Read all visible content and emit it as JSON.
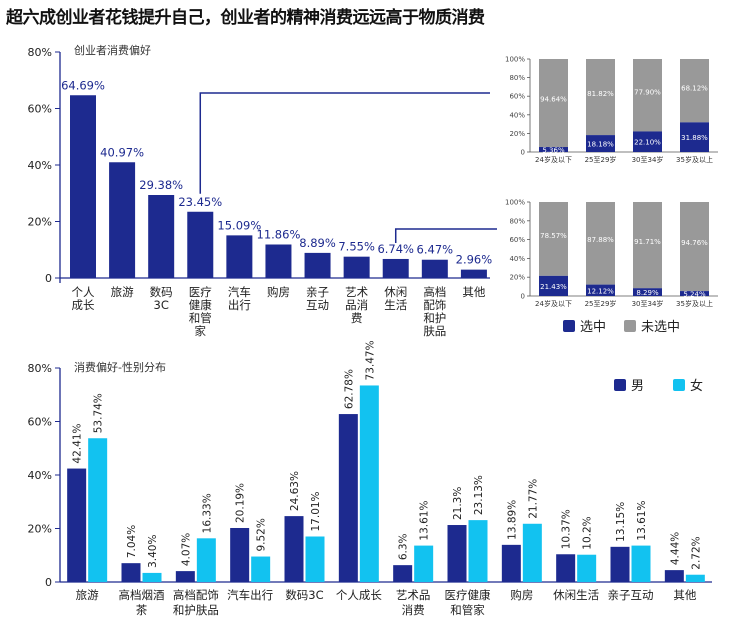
{
  "headline": "超六成创业者花钱提升自己，创业者的精神消费远远高于物质消费",
  "colors": {
    "dark_blue": "#1d2a8f",
    "light_blue": "#12c2f0",
    "gray": "#999999",
    "axis": "#1d2a8f",
    "connector": "#1d2a8f"
  },
  "chart_data": [
    {
      "type": "bar",
      "title": "创业者消费偏好",
      "categories": [
        "个人\n成长",
        "旅游",
        "数码\n3C",
        "医疗\n健康\n和管\n家",
        "汽车\n出行",
        "购房",
        "亲子\n互动",
        "艺术\n品消\n费",
        "休闲\n生活",
        "高档\n配饰\n和护\n肤品",
        "其他"
      ],
      "values": [
        64.69,
        40.97,
        29.38,
        23.45,
        15.09,
        11.86,
        8.89,
        7.55,
        6.74,
        6.47,
        2.96
      ],
      "value_labels": [
        "64.69%",
        "40.97%",
        "29.38%",
        "23.45%",
        "15.09%",
        "11.86%",
        "8.89%",
        "7.55%",
        "6.74%",
        "6.47%",
        "2.96%"
      ],
      "yticks": [
        "0",
        "20%",
        "40%",
        "60%",
        "80%"
      ],
      "ylim": [
        0,
        80
      ],
      "color": "#1d2a8f"
    },
    {
      "type": "bar",
      "stacked": true,
      "categories": [
        "24岁及以下",
        "25至29岁",
        "30至34岁",
        "35岁及以上"
      ],
      "series": [
        {
          "name": "选中",
          "values": [
            5.36,
            18.18,
            22.1,
            31.88
          ],
          "labels": [
            "5.36%",
            "18.18%",
            "22.10%",
            "31.88%"
          ],
          "color": "#1d2a8f"
        },
        {
          "name": "未选中",
          "values": [
            94.64,
            81.82,
            77.9,
            68.12
          ],
          "labels": [
            "94.64%",
            "81.82%",
            "77.90%",
            "68.12%"
          ],
          "color": "#999999"
        }
      ],
      "yticks": [
        "0",
        "20%",
        "40%",
        "60%",
        "80%",
        "100%"
      ],
      "ylim": [
        0,
        100
      ]
    },
    {
      "type": "bar",
      "stacked": true,
      "categories": [
        "24岁及以下",
        "25至29岁",
        "30至34岁",
        "35岁及以上"
      ],
      "series": [
        {
          "name": "选中",
          "values": [
            21.43,
            12.12,
            8.29,
            5.24
          ],
          "labels": [
            "21.43%",
            "12.12%",
            "8.29%",
            "5.24%"
          ],
          "color": "#1d2a8f"
        },
        {
          "name": "未选中",
          "values": [
            78.57,
            87.88,
            91.71,
            94.76
          ],
          "labels": [
            "78.57%",
            "87.88%",
            "91.71%",
            "94.76%"
          ],
          "color": "#999999"
        }
      ],
      "yticks": [
        "0",
        "20%",
        "40%",
        "60%",
        "80%",
        "100%"
      ],
      "ylim": [
        0,
        100
      ]
    },
    {
      "type": "bar",
      "title": "消费偏好-性别分布",
      "categories": [
        "旅游",
        "高档烟酒\n茶",
        "高档配饰\n和护肤品",
        "汽车出行",
        "数码3C",
        "个人成长",
        "艺术品\n消费",
        "医疗健康\n和管家",
        "购房",
        "休闲生活",
        "亲子互动",
        "其他"
      ],
      "series": [
        {
          "name": "男",
          "values": [
            42.41,
            7.04,
            4.07,
            20.19,
            24.63,
            62.78,
            6.3,
            21.3,
            13.89,
            10.37,
            13.15,
            4.44
          ],
          "labels": [
            "42.41%",
            "7.04%",
            "4.07%",
            "20.19%",
            "24.63%",
            "62.78%",
            "6.3%",
            "21.3%",
            "13.89%",
            "10.37%",
            "13.15%",
            "4.44%"
          ],
          "color": "#1d2a8f"
        },
        {
          "name": "女",
          "values": [
            53.74,
            3.4,
            16.33,
            9.52,
            17.01,
            73.47,
            13.61,
            23.13,
            21.77,
            10.2,
            13.61,
            2.72
          ],
          "labels": [
            "53.74%",
            "3.40%",
            "16.33%",
            "9.52%",
            "17.01%",
            "73.47%",
            "13.61%",
            "23.13%",
            "21.77%",
            "10.2%",
            "13.61%",
            "2.72%"
          ],
          "color": "#12c2f0"
        }
      ],
      "yticks": [
        "0",
        "20%",
        "40%",
        "60%",
        "80%"
      ],
      "ylim": [
        0,
        80
      ],
      "legend": "top-right"
    }
  ]
}
